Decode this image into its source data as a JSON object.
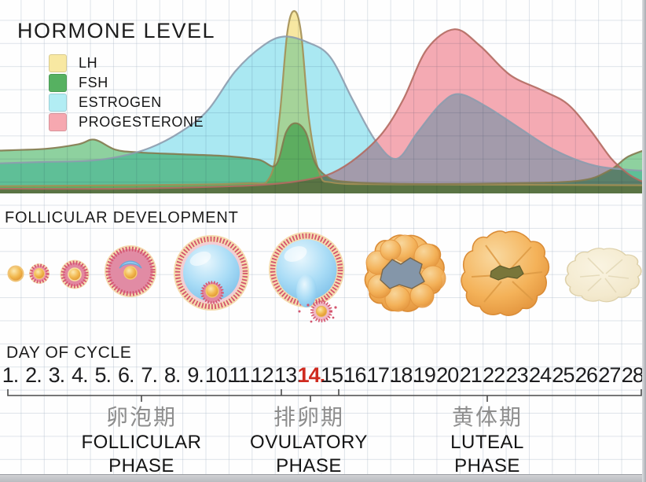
{
  "header": {
    "title": "HORMONE LEVEL"
  },
  "legend": [
    {
      "label": "LH",
      "color": "#f8e8a2"
    },
    {
      "label": "FSH",
      "color": "#56b161"
    },
    {
      "label": "ESTROGEN",
      "color": "#b2edf4"
    },
    {
      "label": "PROGESTERONE",
      "color": "#f6a8b0"
    }
  ],
  "sections": {
    "follicular_development": "FOLLICULAR DEVELOPMENT",
    "day_of_cycle": "DAY OF CYCLE"
  },
  "days": {
    "labels": [
      "1.",
      "2.",
      "3.",
      "4.",
      "5.",
      "6.",
      "7.",
      "8.",
      "9.",
      "10.",
      "11.",
      "12.",
      "13.",
      "14.",
      "15.",
      "16.",
      "17.",
      "18.",
      "19.",
      "20.",
      "21.",
      "22.",
      "23.",
      "24.",
      "25.",
      "26.",
      "27.",
      "28."
    ],
    "highlight_index": 13,
    "highlight_color": "#cf2b20"
  },
  "phases": [
    {
      "zh": "卵泡期",
      "en": "FOLLICULAR PHASE"
    },
    {
      "zh": "排卵期",
      "en": "OVULATORY PHASE"
    },
    {
      "zh": "黄体期",
      "en": "LUTEAL PHASE"
    }
  ],
  "follicle_stages": [
    "primordial-follicle",
    "primary-follicle",
    "secondary-follicle",
    "early-antral-follicle",
    "mature-graafian-follicle",
    "ovulation-follicle",
    "early-corpus-luteum",
    "corpus-luteum",
    "corpus-albicans"
  ],
  "chart_data": {
    "type": "area",
    "title": "HORMONE LEVEL",
    "xlabel": "DAY OF CYCLE",
    "x_range": [
      1,
      28
    ],
    "ylim": [
      0,
      100
    ],
    "grid": true,
    "legend_position": "top-left",
    "series": [
      {
        "name": "LH",
        "fill": "#f8e8a2",
        "stroke": "#a38f55",
        "points": [
          [
            0.5,
            4
          ],
          [
            6,
            4.5
          ],
          [
            11,
            5.5
          ],
          [
            12.2,
            9
          ],
          [
            12.6,
            40
          ],
          [
            12.95,
            88
          ],
          [
            13.25,
            100
          ],
          [
            13.55,
            88
          ],
          [
            13.9,
            40
          ],
          [
            14.35,
            11
          ],
          [
            14.9,
            6
          ],
          [
            17,
            5
          ],
          [
            22,
            4.8
          ],
          [
            28.5,
            4.5
          ]
        ]
      },
      {
        "name": "FSH",
        "fill": "#8fd2a0",
        "stroke": "#847a4f",
        "points": [
          [
            0.5,
            23.5
          ],
          [
            2.5,
            24.5
          ],
          [
            3.9,
            27
          ],
          [
            4.6,
            29.5
          ],
          [
            5.5,
            24
          ],
          [
            6.5,
            22.5
          ],
          [
            8.3,
            21.5
          ],
          [
            10.2,
            20.5
          ],
          [
            11.7,
            18.5
          ],
          [
            12.45,
            15.5
          ],
          [
            12.9,
            33.5
          ],
          [
            13.3,
            38.5
          ],
          [
            13.75,
            33.5
          ],
          [
            14.15,
            17
          ],
          [
            14.65,
            9.5
          ],
          [
            15.4,
            6.5
          ],
          [
            18,
            5.2
          ],
          [
            22.3,
            5.5
          ],
          [
            25.6,
            7
          ],
          [
            26.9,
            12.5
          ],
          [
            27.7,
            20
          ],
          [
            28.5,
            24
          ]
        ]
      },
      {
        "name": "ESTROGEN",
        "fill": "#abe9f3",
        "stroke": "#8d9cae",
        "points": [
          [
            0.5,
            16.5
          ],
          [
            2.5,
            17.3
          ],
          [
            4.2,
            17.8
          ],
          [
            5.6,
            20
          ],
          [
            7,
            25
          ],
          [
            8.3,
            33.5
          ],
          [
            9.5,
            45.5
          ],
          [
            10.7,
            67
          ],
          [
            11.9,
            81
          ],
          [
            12.8,
            86
          ],
          [
            13.8,
            83
          ],
          [
            14.8,
            75
          ],
          [
            15.8,
            51
          ],
          [
            16.8,
            28.5
          ],
          [
            17.7,
            19
          ],
          [
            18.6,
            33.5
          ],
          [
            19.6,
            49
          ],
          [
            20.4,
            54.5
          ],
          [
            21.6,
            47.5
          ],
          [
            23,
            36
          ],
          [
            24.5,
            24
          ],
          [
            26.2,
            15.5
          ],
          [
            27.7,
            13
          ],
          [
            28.5,
            12.5
          ]
        ]
      },
      {
        "name": "PROGESTERONE",
        "fill": "#f5abb4",
        "stroke": "#b26a60",
        "points": [
          [
            0.5,
            2.6
          ],
          [
            5.6,
            2.6
          ],
          [
            10.7,
            4
          ],
          [
            12.7,
            5.6
          ],
          [
            13.9,
            7.8
          ],
          [
            14.9,
            11.2
          ],
          [
            16,
            20
          ],
          [
            17.1,
            33.5
          ],
          [
            18,
            52
          ],
          [
            19,
            79
          ],
          [
            20.2,
            90
          ],
          [
            21.3,
            81
          ],
          [
            22.6,
            65
          ],
          [
            24,
            56.5
          ],
          [
            25.1,
            49
          ],
          [
            26.1,
            34.5
          ],
          [
            27,
            19
          ],
          [
            27.7,
            11
          ],
          [
            28.2,
            7.3
          ],
          [
            28.5,
            6
          ]
        ]
      }
    ]
  }
}
